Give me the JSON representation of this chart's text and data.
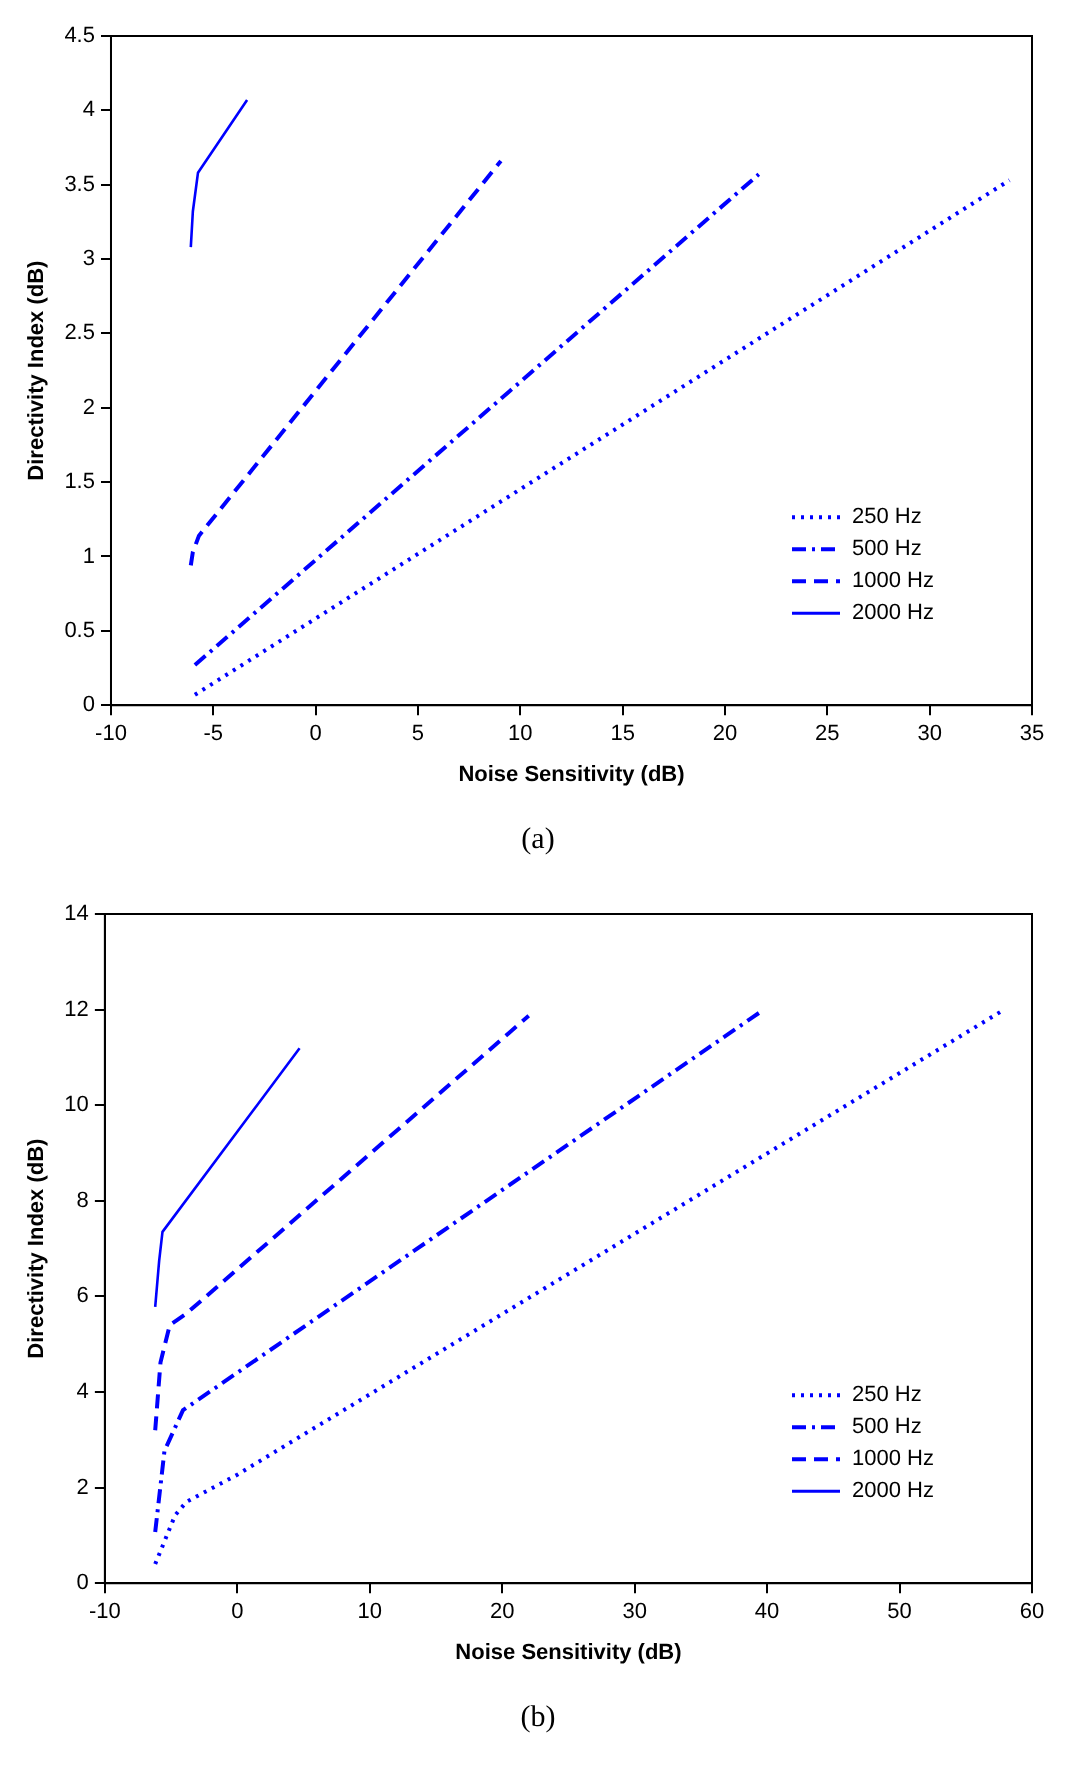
{
  "chart_data": [
    {
      "type": "line",
      "xlabel": "Noise Sensitivity (dB)",
      "ylabel": "Directivity Index (dB)",
      "annotations": [
        "(a)"
      ],
      "xlim": [
        -10,
        35
      ],
      "xticks": [
        -10,
        -5,
        0,
        5,
        10,
        15,
        20,
        25,
        30,
        35
      ],
      "ylim": [
        0,
        4.5
      ],
      "yticks": [
        0,
        0.5,
        1,
        1.5,
        2,
        2.5,
        3,
        3.5,
        4,
        4.5
      ],
      "grid": false,
      "legend": "bottom right",
      "marker": "none",
      "series": [
        {
          "name": "250 Hz",
          "color": "#0000ff",
          "line_style": "dotted",
          "x": [
            -5.9,
            33.9
          ],
          "values": [
            0.07,
            3.53
          ]
        },
        {
          "name": "500 Hz",
          "color": "#0000ff",
          "line_style": "dashdot",
          "x": [
            -5.9,
            21.65
          ],
          "values": [
            0.27,
            3.57
          ]
        },
        {
          "name": "1000 Hz",
          "color": "#0000ff",
          "line_style": "dashed",
          "x": [
            -6.1,
            -6.0,
            -5.7,
            9.05
          ],
          "values": [
            0.94,
            1.03,
            1.14,
            3.66
          ]
        },
        {
          "name": "2000 Hz",
          "color": "#0000ff",
          "line_style": "solid",
          "x": [
            -6.1,
            -6.0,
            -5.75,
            -3.35
          ],
          "values": [
            3.08,
            3.32,
            3.58,
            4.07
          ]
        }
      ]
    },
    {
      "type": "line",
      "xlabel": "Noise Sensitivity (dB)",
      "ylabel": "Directivity Index (dB)",
      "annotations": [
        "(b)"
      ],
      "xlim": [
        -10,
        60
      ],
      "xticks": [
        -10,
        0,
        10,
        20,
        30,
        40,
        50,
        60
      ],
      "ylim": [
        0,
        14
      ],
      "yticks": [
        0,
        2,
        4,
        6,
        8,
        10,
        12,
        14
      ],
      "grid": false,
      "legend": "bottom right",
      "marker": "none",
      "series": [
        {
          "name": "250 Hz",
          "color": "#0000ff",
          "line_style": "dotted",
          "x": [
            -6.2,
            -4.7,
            -3.85,
            0,
            57.9
          ],
          "values": [
            0.4,
            1.42,
            1.7,
            2.27,
            12.0
          ]
        },
        {
          "name": "500 Hz",
          "color": "#0000ff",
          "line_style": "dashdot",
          "x": [
            -6.2,
            -5.5,
            -4.1,
            39.75
          ],
          "values": [
            1.07,
            2.77,
            3.62,
            12.0
          ]
        },
        {
          "name": "1000 Hz",
          "color": "#0000ff",
          "line_style": "dashed",
          "x": [
            -6.2,
            -5.8,
            -5.1,
            -3.85,
            22.0
          ],
          "values": [
            3.2,
            4.62,
            5.4,
            5.64,
            11.87
          ]
        },
        {
          "name": "2000 Hz",
          "color": "#0000ff",
          "line_style": "solid",
          "x": [
            -6.2,
            -5.9,
            -5.65,
            4.7
          ],
          "values": [
            5.78,
            6.75,
            7.35,
            11.19
          ]
        }
      ]
    }
  ]
}
